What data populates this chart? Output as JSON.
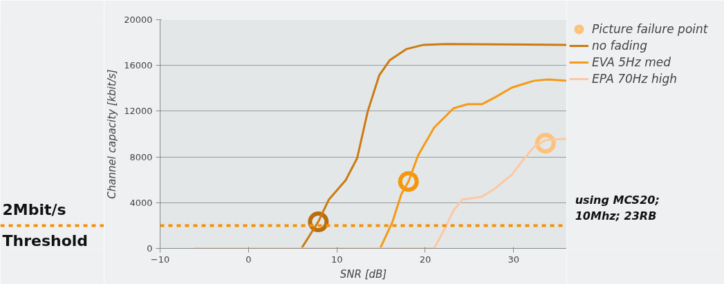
{
  "chart_data": {
    "type": "line",
    "xlabel": "SNR [dB]",
    "ylabel": "Channel capacity [kbit/s]",
    "xlim": [
      -10,
      36
    ],
    "xticks": [
      -10,
      0,
      10,
      20,
      30
    ],
    "ylim": [
      0,
      20000
    ],
    "yticks": [
      0,
      4000,
      8000,
      12000,
      16000,
      20000
    ],
    "grid": "y",
    "legend": "right",
    "line_style": "solid",
    "series": [
      {
        "name": "Picture failure point",
        "type": "scatter",
        "marker": "circle",
        "color": "#fcc27a",
        "colors": [
          "#b86e0e",
          "#f5960f",
          "#fcc27a"
        ],
        "x": [
          7.9,
          18.1,
          33.6
        ],
        "values": [
          2320,
          5850,
          9200
        ]
      },
      {
        "name": "no fading",
        "color": "#cc7a10",
        "x": [
          -6,
          6.0,
          7.9,
          9.1,
          11.0,
          12.3,
          13.5,
          14.8,
          16.0,
          17.9,
          19.8,
          22.3,
          36
        ],
        "values": [
          0,
          0,
          2340,
          4280,
          5970,
          7900,
          12000,
          15150,
          16470,
          17440,
          17800,
          17870,
          17800
        ]
      },
      {
        "name": "EVA 5Hz med",
        "color": "#f59a14",
        "x": [
          -6,
          14.9,
          16.3,
          17.3,
          18.1,
          19.2,
          21.0,
          23.2,
          24.8,
          26.4,
          27.9,
          29.8,
          32.3,
          33.9,
          36
        ],
        "values": [
          0,
          0,
          2340,
          4760,
          5850,
          8140,
          10560,
          12250,
          12610,
          12610,
          13210,
          14060,
          14660,
          14780,
          14660
        ]
      },
      {
        "name": "EPA 70Hz high",
        "color": "#fcc8a4",
        "x": [
          -6,
          21.0,
          22.3,
          23.2,
          24.2,
          26.4,
          27.9,
          29.8,
          31.0,
          32.3,
          33.6,
          36
        ],
        "values": [
          0,
          0,
          1860,
          3310,
          4280,
          4520,
          5240,
          6450,
          7660,
          8860,
          9470,
          9590
        ]
      }
    ],
    "ref_lines": [
      {
        "axis": "y",
        "value": 2000,
        "color": "#f5900a",
        "line_style": "dashed"
      }
    ],
    "annotations": [
      "2Mbit/s",
      "Threshold",
      "using MCS20;\n10Mhz; 23RB"
    ]
  }
}
